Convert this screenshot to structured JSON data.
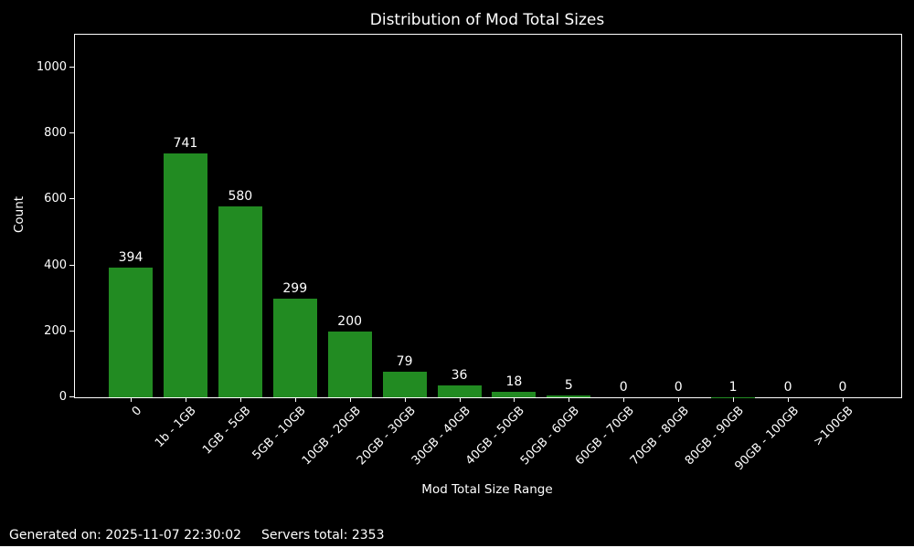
{
  "chart_data": {
    "type": "bar",
    "title": "Distribution of Mod Total Sizes",
    "xlabel": "Mod Total Size Range",
    "ylabel": "Count",
    "categories": [
      "0",
      "1b - 1GB",
      "1GB - 5GB",
      "5GB - 10GB",
      "10GB - 20GB",
      "20GB - 30GB",
      "30GB - 40GB",
      "40GB - 50GB",
      "50GB - 60GB",
      "60GB - 70GB",
      "70GB - 80GB",
      "80GB - 90GB",
      "90GB - 100GB",
      ">100GB"
    ],
    "values": [
      394,
      741,
      580,
      299,
      200,
      79,
      36,
      18,
      5,
      0,
      0,
      1,
      0,
      0
    ],
    "yticks": [
      0,
      200,
      400,
      600,
      800,
      1000
    ],
    "ylim": [
      0,
      1100
    ],
    "grid": false,
    "legend": null,
    "value_labels_shown": true,
    "bar_color": "#228B22",
    "background_color": "#000000",
    "text_color": "#ffffff",
    "axis_color": "#ffffff"
  },
  "footer": {
    "generated_on": "Generated on: 2025-11-07 22:30:02",
    "servers_total": "Servers total: 2353"
  }
}
